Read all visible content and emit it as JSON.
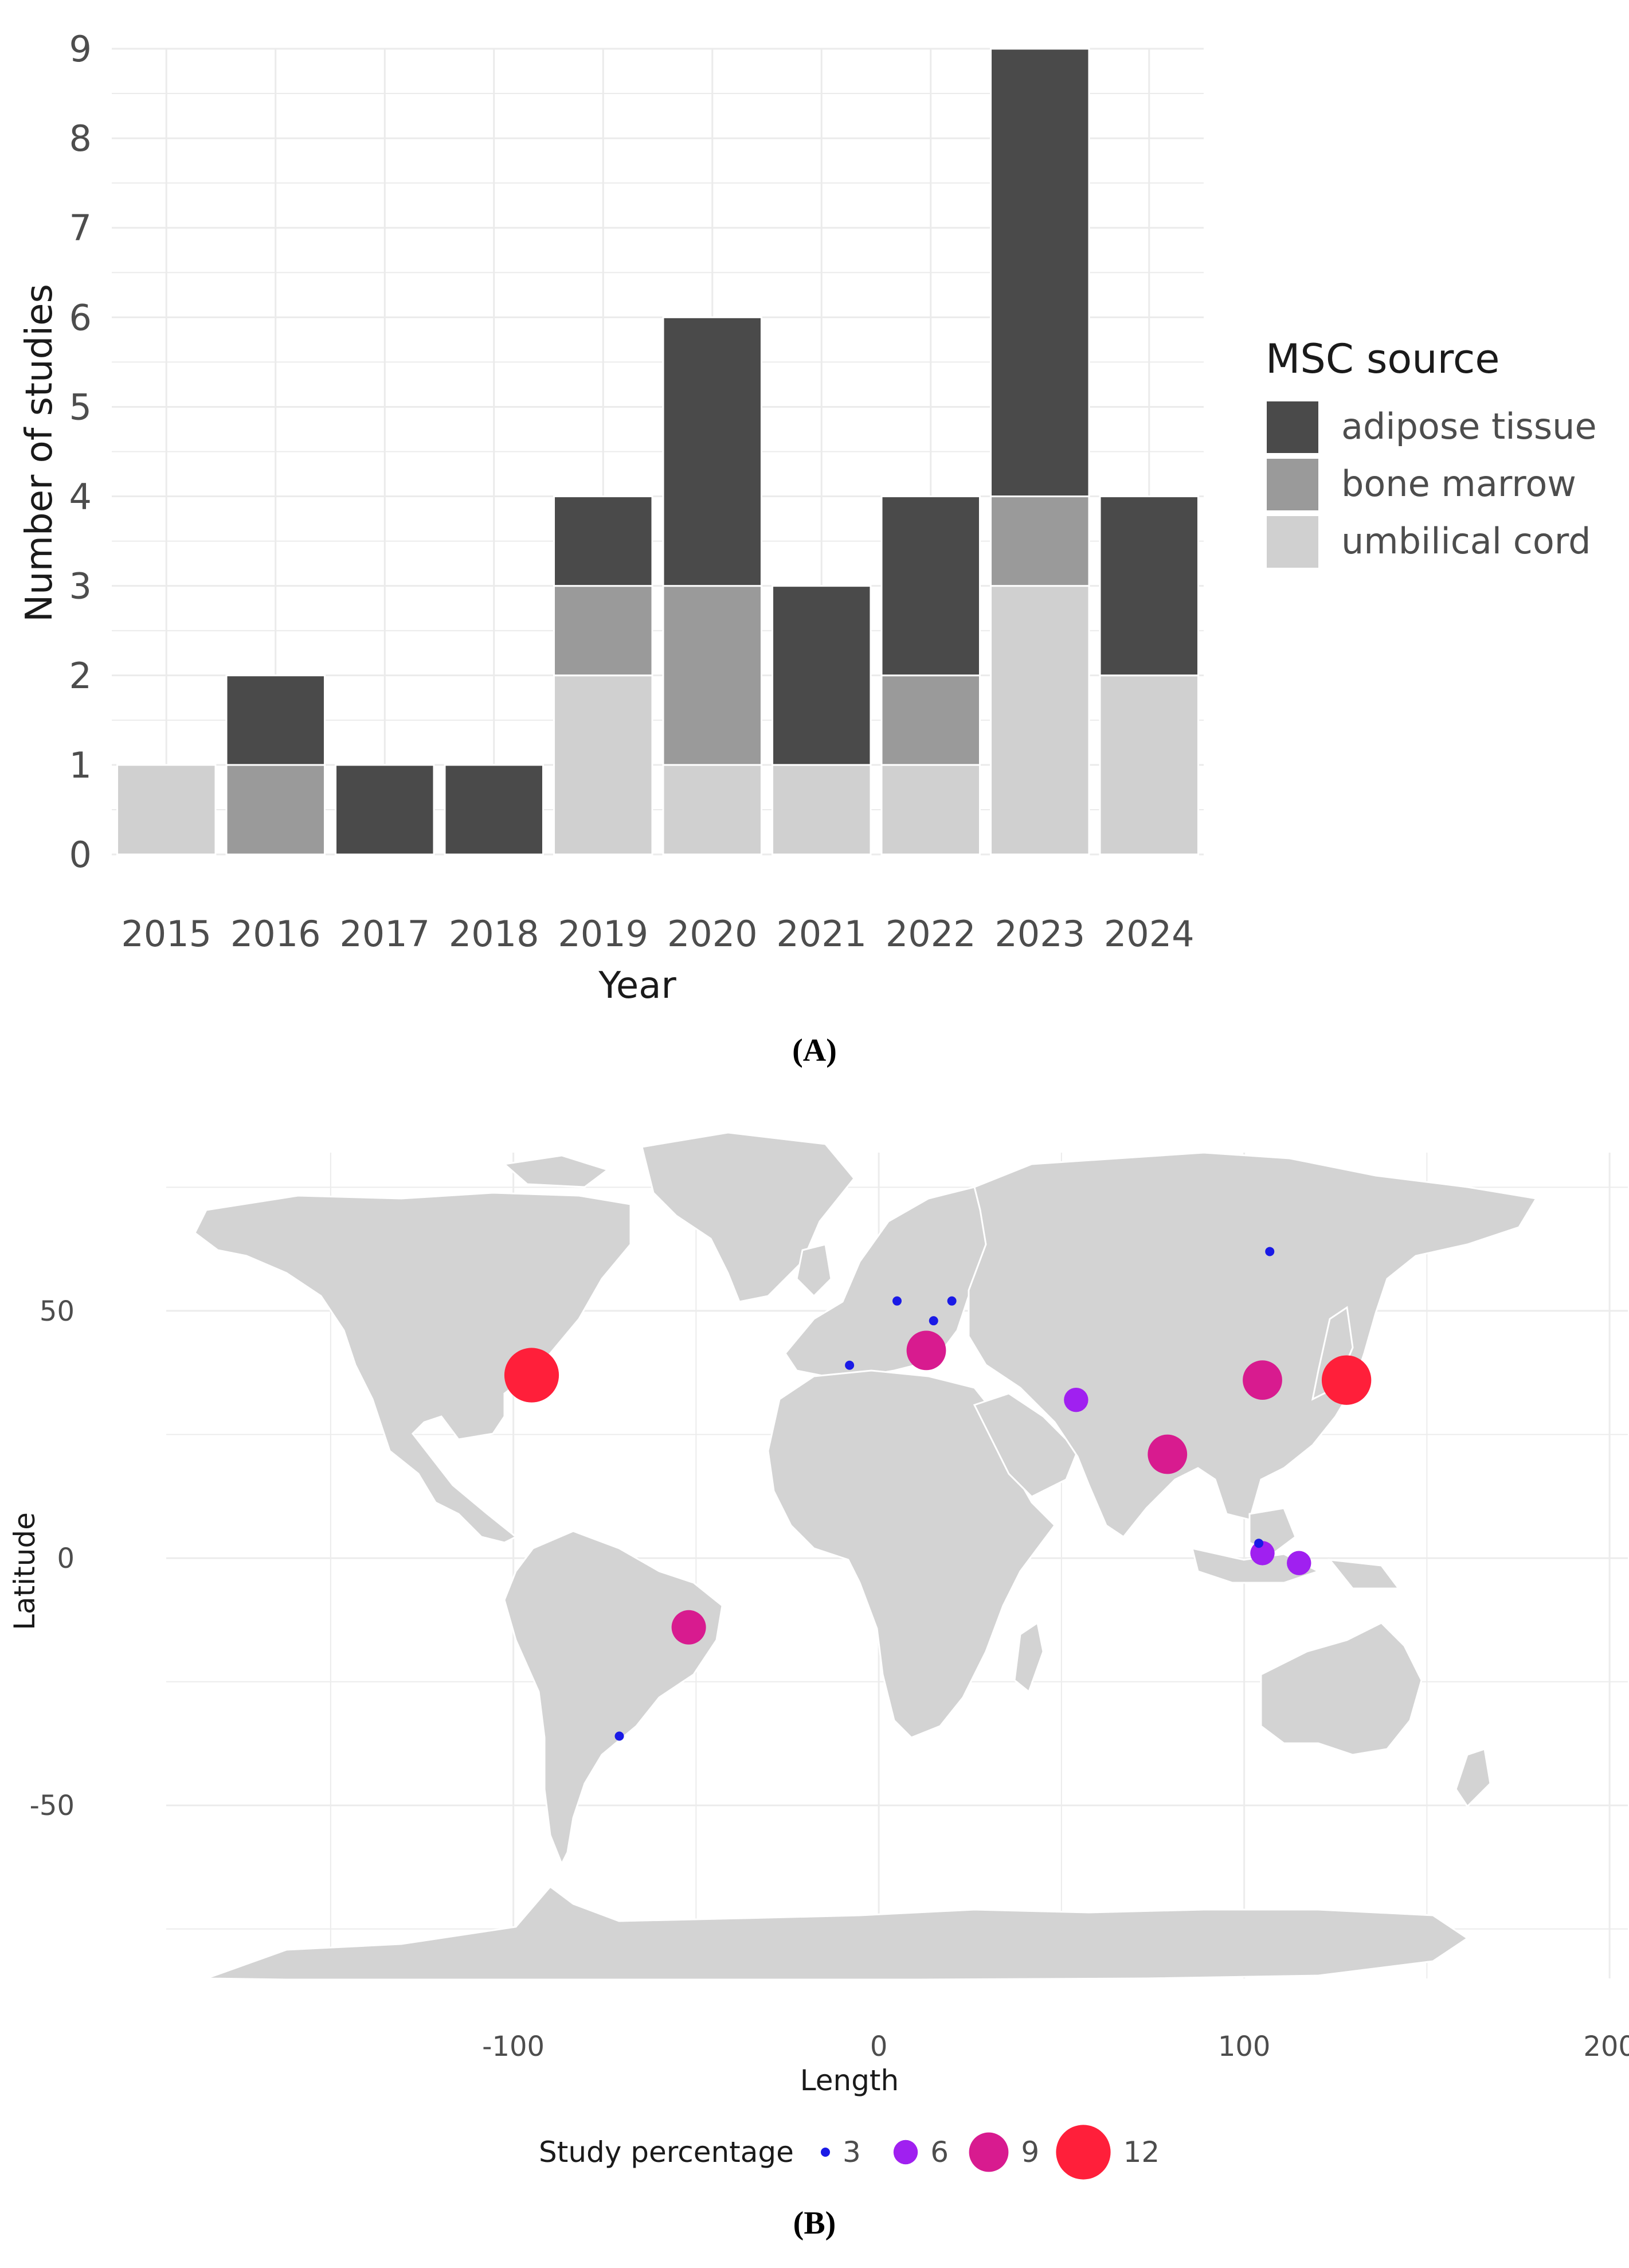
{
  "chart_data": [
    {
      "panel": "A",
      "type": "bar",
      "stacked": true,
      "caption": "(A)",
      "xlabel": "Year",
      "ylabel": "Number of studies",
      "categories": [
        "2015",
        "2016",
        "2017",
        "2018",
        "2019",
        "2020",
        "2021",
        "2022",
        "2023",
        "2024"
      ],
      "ylim": [
        0,
        9
      ],
      "yticks": [
        "0",
        "1",
        "2",
        "3",
        "4",
        "5",
        "6",
        "7",
        "8",
        "9"
      ],
      "grid": true,
      "legend": {
        "title": "MSC source",
        "position": "right",
        "entries": [
          "adipose tissue",
          "bone marrow",
          "umbilical cord"
        ]
      },
      "series": [
        {
          "name": "umbilical cord",
          "color": "#d0d0d0",
          "values": [
            1,
            0,
            0,
            0,
            2,
            1,
            1,
            1,
            3,
            2
          ]
        },
        {
          "name": "bone marrow",
          "color": "#9a9a9a",
          "values": [
            0,
            1,
            0,
            0,
            1,
            2,
            0,
            1,
            1,
            0
          ]
        },
        {
          "name": "adipose tissue",
          "color": "#4a4a4a",
          "values": [
            0,
            1,
            1,
            1,
            1,
            3,
            2,
            2,
            5,
            2
          ]
        }
      ]
    },
    {
      "panel": "B",
      "type": "scatter",
      "subtype": "bubble map",
      "caption": "(B)",
      "xlabel": "Length",
      "ylabel": "Latitude",
      "xlim": [
        -195,
        205
      ],
      "ylim": [
        -85,
        82
      ],
      "xticks": [
        -100,
        0,
        100,
        200
      ],
      "xtick_labels": [
        "-100",
        "0",
        "100",
        "200"
      ],
      "yticks": [
        -50,
        0,
        50
      ],
      "ytick_labels": [
        "-50",
        "0",
        "50"
      ],
      "grid": true,
      "legend": {
        "title": "Study percentage",
        "position": "bottom",
        "sizes": [
          3,
          6,
          9,
          12
        ],
        "labels": [
          "3",
          "6",
          "9",
          "12"
        ],
        "colors": [
          "#1a1ae6",
          "#a020f0",
          "#d81b8f",
          "#ff1f3a"
        ]
      },
      "points": [
        {
          "lon": -95,
          "lat": 37,
          "value": 12
        },
        {
          "lon": 128,
          "lat": 36,
          "value": 11
        },
        {
          "lon": 105,
          "lat": 36,
          "value": 9
        },
        {
          "lon": 13,
          "lat": 42,
          "value": 9
        },
        {
          "lon": 79,
          "lat": 21,
          "value": 9
        },
        {
          "lon": -52,
          "lat": -14,
          "value": 8
        },
        {
          "lon": 54,
          "lat": 32,
          "value": 6
        },
        {
          "lon": 105,
          "lat": 1,
          "value": 6
        },
        {
          "lon": 115,
          "lat": -1,
          "value": 6
        },
        {
          "lon": 104,
          "lat": 3,
          "value": 3
        },
        {
          "lon": 107,
          "lat": 62,
          "value": 3
        },
        {
          "lon": 5,
          "lat": 52,
          "value": 3
        },
        {
          "lon": 20,
          "lat": 52,
          "value": 3
        },
        {
          "lon": 15,
          "lat": 48,
          "value": 3
        },
        {
          "lon": -8,
          "lat": 39,
          "value": 3
        },
        {
          "lon": -71,
          "lat": -36,
          "value": 3
        }
      ]
    }
  ]
}
